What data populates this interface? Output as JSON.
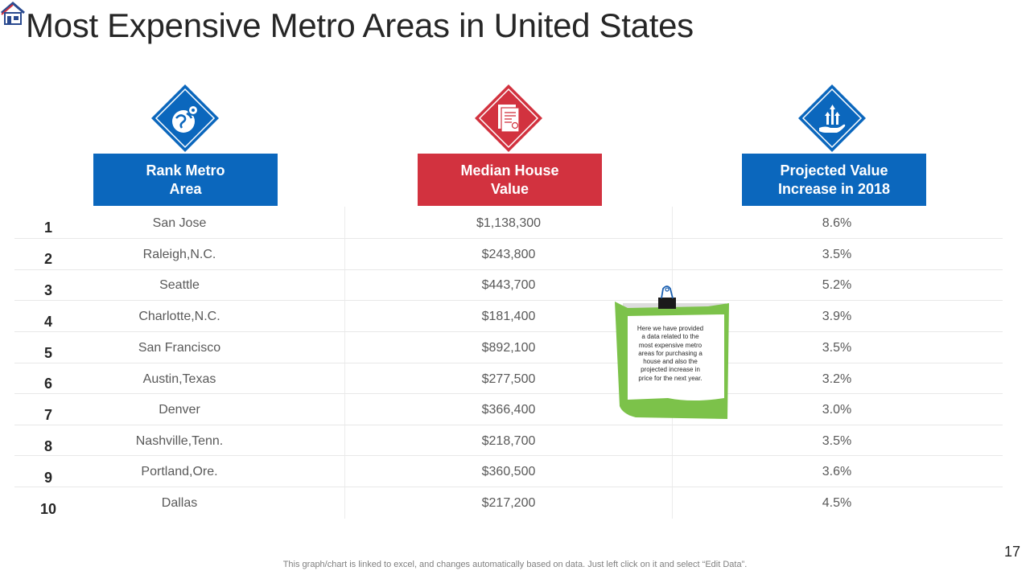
{
  "slide": {
    "title": "Most Expensive Metro Areas in United States",
    "page_number": "17",
    "footer": "This graph/chart is linked to excel,  and changes automatically based on data. Just left click on it and select “Edit Data”."
  },
  "columns": [
    {
      "line1": "Rank Metro",
      "line2": "Area",
      "color": "#0b67bd",
      "icon": "location-globe-icon"
    },
    {
      "line1": "Median House",
      "line2": "Value",
      "color": "#d2323f",
      "icon": "document-icon"
    },
    {
      "line1": "Projected Value",
      "line2": "Increase in 2018",
      "color": "#0b67bd",
      "icon": "growth-hand-icon"
    }
  ],
  "rows": [
    {
      "rank": "1",
      "area": "San Jose",
      "value": "$1,138,300",
      "increase": "8.6%"
    },
    {
      "rank": "2",
      "area": "Raleigh,N.C.",
      "value": "$243,800",
      "increase": "3.5%"
    },
    {
      "rank": "3",
      "area": "Seattle",
      "value": "$443,700",
      "increase": "5.2%"
    },
    {
      "rank": "4",
      "area": "Charlotte,N.C.",
      "value": "$181,400",
      "increase": "3.9%"
    },
    {
      "rank": "5",
      "area": "San Francisco",
      "value": "$892,100",
      "increase": "3.5%"
    },
    {
      "rank": "6",
      "area": "Austin,Texas",
      "value": "$277,500",
      "increase": "3.2%"
    },
    {
      "rank": "7",
      "area": "Denver",
      "value": "$366,400",
      "increase": "3.0%"
    },
    {
      "rank": "8",
      "area": "Nashville,Tenn.",
      "value": "$218,700",
      "increase": "3.5%"
    },
    {
      "rank": "9",
      "area": "Portland,Ore.",
      "value": "$360,500",
      "increase": "3.6%"
    },
    {
      "rank": "10",
      "area": "Dallas",
      "value": "$217,200",
      "increase": "4.5%"
    }
  ],
  "note": {
    "lines": [
      "Here we have provided",
      "a data related to the",
      "most expensive metro",
      "areas for purchasing a",
      "house and also the",
      "projected increase in",
      "price for the next year."
    ]
  }
}
